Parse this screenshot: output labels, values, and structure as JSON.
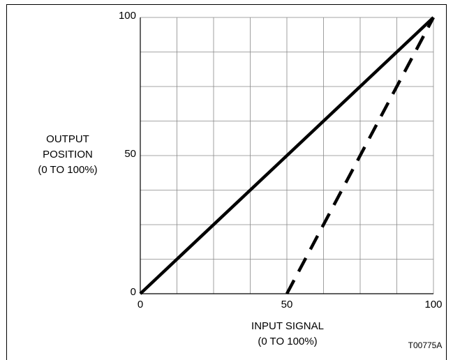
{
  "chart_data": {
    "type": "line",
    "ylabel": [
      "OUTPUT",
      "POSITION",
      "(0 TO 100%)"
    ],
    "xlabel": [
      "INPUT SIGNAL",
      "(0 TO 100%)"
    ],
    "annotation": "T00775A",
    "xlim": [
      0,
      100
    ],
    "ylim": [
      0,
      100
    ],
    "xticks": [
      0,
      50,
      100
    ],
    "yticks": [
      0,
      50,
      100
    ],
    "xgrid": [
      0,
      12.5,
      25,
      37.5,
      50,
      62.5,
      75,
      87.5,
      100
    ],
    "ygrid": [
      0,
      12.5,
      25,
      37.5,
      50,
      62.5,
      75,
      87.5,
      100
    ],
    "grid": true,
    "series": [
      {
        "color": "#000000",
        "dash": false,
        "x": [
          0,
          100
        ],
        "values": [
          0,
          100
        ]
      },
      {
        "color": "#000000",
        "dash": true,
        "x": [
          50,
          100
        ],
        "values": [
          0,
          100
        ]
      }
    ]
  }
}
